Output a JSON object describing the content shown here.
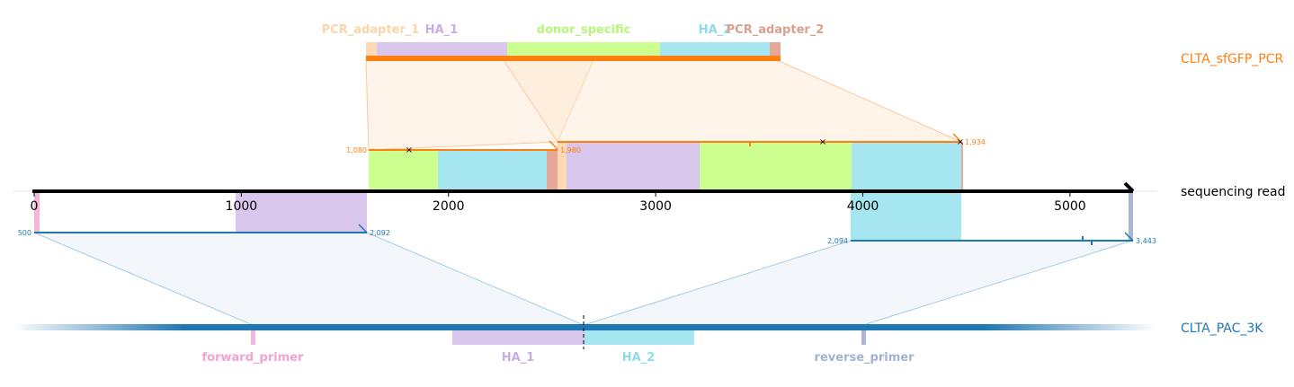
{
  "pcr_track": {
    "name": "CLTA_sfGFP_PCR",
    "color": "#ff7f0e",
    "features": [
      {
        "name": "PCR_adapter_1",
        "color": "#fdd9b5",
        "label_color": "#fbd5a8",
        "start": 0,
        "end": 47
      },
      {
        "name": "HA_1",
        "color": "#d8c6ec",
        "label_color": "#c9aee6",
        "start": 47,
        "end": 675
      },
      {
        "name": "donor_specific",
        "color": "#ccff90",
        "label_color": "#b8f57a",
        "start": 675,
        "end": 1406
      },
      {
        "name": "HA_2",
        "color": "#a6e6f0",
        "label_color": "#8fdbea",
        "start": 1406,
        "end": 1918
      },
      {
        "name": "PCR_adapter_2",
        "color": "#e5a898",
        "label_color": "#d9a08e",
        "start": 1918,
        "end": 1970
      }
    ]
  },
  "read_track": {
    "name": "sequencing read",
    "ticks": [
      "0",
      "1000",
      "2000",
      "3000",
      "4000",
      "5000"
    ],
    "tick_values": [
      0,
      1000,
      2000,
      3000,
      4000,
      5000
    ],
    "length": 5300
  },
  "reference_track": {
    "name": "CLTA_PAC_3K",
    "color": "#1f77b4",
    "features": [
      {
        "name": "forward_primer",
        "color": "#f7b6d9",
        "label_color": "#f3a3cf"
      },
      {
        "name": "HA_1",
        "color": "#d8c6ec",
        "label_color": "#c9aee6"
      },
      {
        "name": "HA_2",
        "color": "#a6e6f0",
        "label_color": "#8fdbea"
      },
      {
        "name": "reverse_primer",
        "color": "#aab8d6",
        "label_color": "#a3b2d3"
      }
    ]
  },
  "alignments": {
    "pcr_left": {
      "start_label": "1,080",
      "end_label": "1,980"
    },
    "pcr_right": {
      "start_label": "1,934"
    },
    "ref_left": {
      "start_label": "500",
      "end_label": "2,092"
    },
    "ref_right": {
      "start_label": "2,094",
      "end_label": "3,443"
    }
  }
}
